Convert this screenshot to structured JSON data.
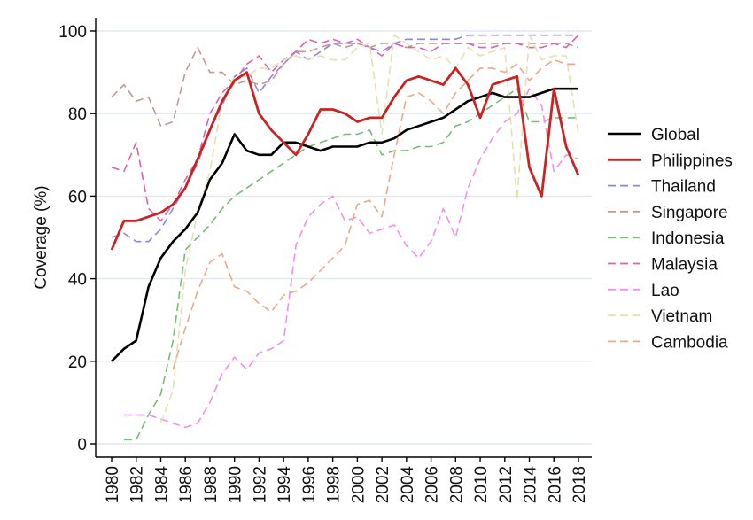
{
  "chart_data": {
    "type": "line",
    "ylabel": "Coverage (%)",
    "xlabel": "",
    "xlim": [
      1980,
      2018
    ],
    "ylim": [
      0,
      100
    ],
    "x_ticks": [
      1980,
      1982,
      1984,
      1986,
      1988,
      1990,
      1992,
      1994,
      1996,
      1998,
      2000,
      2002,
      2004,
      2006,
      2008,
      2010,
      2012,
      2014,
      2016,
      2018
    ],
    "y_ticks": [
      0,
      20,
      40,
      60,
      80,
      100
    ],
    "grid": true,
    "legend_position": "right",
    "x": [
      1980,
      1981,
      1982,
      1983,
      1984,
      1985,
      1986,
      1987,
      1988,
      1989,
      1990,
      1991,
      1992,
      1993,
      1994,
      1995,
      1996,
      1997,
      1998,
      1999,
      2000,
      2001,
      2002,
      2003,
      2004,
      2005,
      2006,
      2007,
      2008,
      2009,
      2010,
      2011,
      2012,
      2013,
      2014,
      2015,
      2016,
      2017,
      2018
    ],
    "series": [
      {
        "name": "Global",
        "color": "#000000",
        "dash": "solid",
        "width": 2.6,
        "values": [
          20,
          23,
          25,
          38,
          45,
          49,
          52,
          56,
          64,
          68,
          75,
          71,
          70,
          70,
          73,
          73,
          72,
          71,
          72,
          72,
          72,
          73,
          73,
          74,
          76,
          77,
          78,
          79,
          81,
          83,
          84,
          85,
          84,
          84,
          84,
          85,
          86,
          86,
          86
        ]
      },
      {
        "name": "Philippines",
        "color": "#cc2222",
        "dash": "solid",
        "width": 2.8,
        "values": [
          47,
          54,
          54,
          55,
          56,
          58,
          62,
          69,
          76,
          83,
          88,
          90,
          80,
          76,
          73,
          70,
          75,
          81,
          81,
          80,
          78,
          79,
          79,
          84,
          88,
          89,
          88,
          87,
          91,
          87,
          79,
          87,
          88,
          89,
          67,
          60,
          86,
          72,
          65
        ]
      },
      {
        "name": "Thailand",
        "color": "#8888dd",
        "dash": "dash",
        "width": 1.6,
        "values": [
          50,
          51,
          49,
          49,
          52,
          57,
          62,
          68,
          76,
          82,
          89,
          91,
          85,
          89,
          92,
          95,
          93,
          95,
          97,
          97,
          97,
          96,
          95,
          97,
          98,
          98,
          98,
          98,
          98,
          99,
          99,
          99,
          99,
          99,
          99,
          99,
          99,
          99,
          99
        ]
      },
      {
        "name": "Singapore",
        "color": "#c09a90",
        "dash": "dash",
        "width": 1.6,
        "values": [
          84,
          87,
          83,
          84,
          77,
          78,
          90,
          96,
          90,
          90,
          87,
          88,
          87,
          88,
          92,
          95,
          95,
          96,
          97,
          96,
          97,
          96,
          97,
          97,
          96,
          97,
          97,
          97,
          97,
          97,
          97,
          97,
          97,
          97,
          97,
          97,
          97,
          97,
          96
        ]
      },
      {
        "name": "Indonesia",
        "color": "#77bb77",
        "dash": "dash",
        "width": 1.6,
        "values": [
          null,
          1,
          1,
          7,
          12,
          25,
          47,
          50,
          53,
          57,
          60,
          62,
          64,
          66,
          68,
          70,
          72,
          73,
          74,
          75,
          75,
          76,
          70,
          71,
          71,
          72,
          72,
          73,
          77,
          78,
          80,
          82,
          84,
          86,
          78,
          78,
          79,
          79,
          79
        ]
      },
      {
        "name": "Malaysia",
        "color": "#e060b0",
        "dash": "dash",
        "width": 1.6,
        "values": [
          67,
          66,
          73,
          57,
          54,
          58,
          64,
          69,
          80,
          85,
          88,
          92,
          94,
          90,
          93,
          95,
          98,
          97,
          98,
          97,
          98,
          96,
          94,
          97,
          96,
          96,
          95,
          97,
          97,
          97,
          96,
          96,
          97,
          97,
          96,
          96,
          97,
          96,
          99
        ]
      },
      {
        "name": "Lao",
        "color": "#f090e8",
        "dash": "dash",
        "width": 1.6,
        "values": [
          null,
          7,
          7,
          7,
          6,
          5,
          4,
          5,
          10,
          17,
          21,
          18,
          22,
          23,
          25,
          48,
          55,
          58,
          60,
          54,
          55,
          51,
          52,
          53,
          48,
          45,
          49,
          57,
          50,
          62,
          69,
          74,
          78,
          80,
          86,
          82,
          66,
          70,
          69
        ]
      },
      {
        "name": "Vietnam",
        "color": "#e6e0b0",
        "dash": "dash",
        "width": 1.6,
        "values": [
          null,
          null,
          null,
          null,
          5,
          13,
          42,
          56,
          66,
          83,
          89,
          89,
          91,
          91,
          93,
          94,
          93,
          94,
          93,
          93,
          96,
          97,
          75,
          99,
          97,
          95,
          93,
          94,
          91,
          96,
          94,
          95,
          96,
          59,
          99,
          93,
          94,
          94,
          75
        ]
      },
      {
        "name": "Cambodia",
        "color": "#eba88a",
        "dash": "dash",
        "width": 1.6,
        "values": [
          null,
          null,
          null,
          null,
          null,
          18,
          28,
          37,
          44,
          46,
          38,
          37,
          34,
          32,
          36,
          37,
          39,
          42,
          45,
          48,
          58,
          59,
          55,
          70,
          84,
          85,
          83,
          80,
          85,
          88,
          91,
          91,
          90,
          92,
          88,
          91,
          93,
          92,
          92
        ]
      }
    ]
  }
}
